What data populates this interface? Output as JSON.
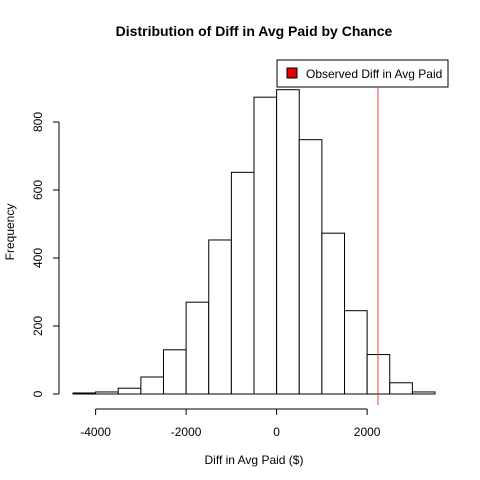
{
  "chart_data": {
    "type": "bar",
    "title": "Distribution of Diff in Avg Paid by Chance",
    "xlabel": "Diff in Avg Paid ($)",
    "ylabel": "Frequency",
    "bin_width": 500,
    "bins": [
      {
        "start": -4500,
        "end": -4000,
        "count": 3
      },
      {
        "start": -4000,
        "end": -3500,
        "count": 6
      },
      {
        "start": -3500,
        "end": -3000,
        "count": 17
      },
      {
        "start": -3000,
        "end": -2500,
        "count": 50
      },
      {
        "start": -2500,
        "end": -2000,
        "count": 130
      },
      {
        "start": -2000,
        "end": -1500,
        "count": 270
      },
      {
        "start": -1500,
        "end": -1000,
        "count": 453
      },
      {
        "start": -1000,
        "end": -500,
        "count": 652
      },
      {
        "start": -500,
        "end": 0,
        "count": 873
      },
      {
        "start": 0,
        "end": 500,
        "count": 895
      },
      {
        "start": 500,
        "end": 1000,
        "count": 748
      },
      {
        "start": 1000,
        "end": 1500,
        "count": 473
      },
      {
        "start": 1500,
        "end": 2000,
        "count": 245
      },
      {
        "start": 2000,
        "end": 2500,
        "count": 116
      },
      {
        "start": 2500,
        "end": 3000,
        "count": 33
      },
      {
        "start": 3000,
        "end": 3500,
        "count": 6
      }
    ],
    "observed_value": 2240,
    "observed_color": "#e8413c",
    "legend": {
      "label": "Observed Diff in Avg Paid",
      "swatch_color": "#e60000",
      "position": "top-right"
    },
    "xlim": [
      -4500,
      3500
    ],
    "ylim": [
      0,
      900
    ],
    "x_ticks": [
      -4000,
      -2000,
      0,
      2000
    ],
    "x_tick_labels": [
      "-4000",
      "-2000",
      "0",
      "2000"
    ],
    "y_ticks": [
      0,
      200,
      400,
      600,
      800
    ],
    "y_tick_labels": [
      "0",
      "200",
      "400",
      "600",
      "800"
    ],
    "grid": false
  }
}
